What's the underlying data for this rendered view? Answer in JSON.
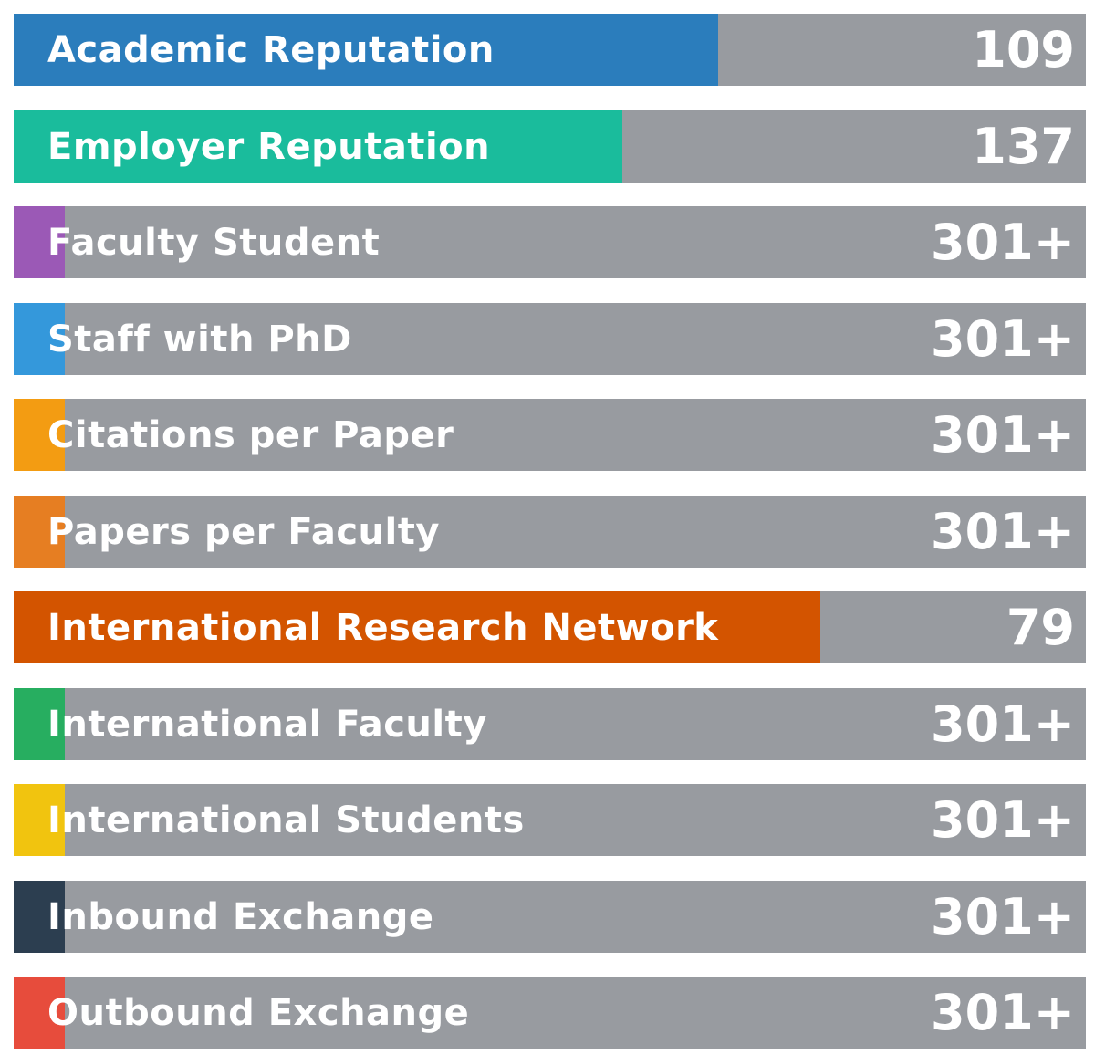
{
  "chart_data": {
    "type": "bar",
    "categories": [
      "Academic Reputation",
      "Employer Reputation",
      "Faculty Student",
      "Staff with PhD",
      "Citations per Paper",
      "Papers per Faculty",
      "International Research Network",
      "International Faculty",
      "International Students",
      "Inbound Exchange",
      "Outbound Exchange"
    ],
    "value_labels": [
      "109",
      "137",
      "301+",
      "301+",
      "301+",
      "301+",
      "79",
      "301+",
      "301+",
      "301+",
      "301+"
    ],
    "fill_fraction": [
      0.657,
      0.568,
      0.048,
      0.048,
      0.048,
      0.048,
      0.752,
      0.048,
      0.048,
      0.048,
      0.048
    ],
    "colors": [
      "#2b7dbc",
      "#1abc9c",
      "#9b59b6",
      "#3498db",
      "#f39c12",
      "#e67e22",
      "#d35400",
      "#27ae60",
      "#f1c40f",
      "#2c3e50",
      "#e74c3c"
    ],
    "track_color": "#989ba0"
  }
}
